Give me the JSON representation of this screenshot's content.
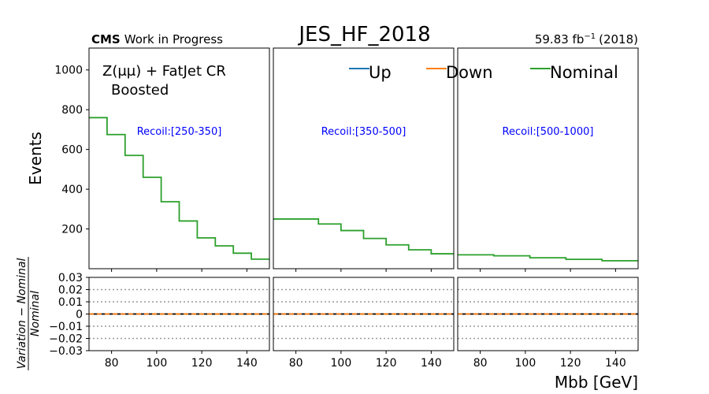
{
  "header": {
    "title": "JES_HF_2018",
    "title_color": "#ff0000",
    "cms_bold": "CMS",
    "cms_rest": "Work in Progress",
    "lumi_value": "59.83 fb",
    "lumi_exp": "−1",
    "lumi_year": "(2018)"
  },
  "region": {
    "line1": "Z(μμ) + FatJet CR",
    "line2": "Boosted"
  },
  "chart_data": {
    "type": "line",
    "step": true,
    "xlabel": "Mbb [GeV]",
    "ylabel_top": "Events",
    "ylabel_bottom": {
      "numerator": "Variation − Nominal",
      "denominator": "Nominal"
    },
    "top_ylim": [
      0,
      1110
    ],
    "top_yticks": [
      200,
      400,
      600,
      800,
      1000
    ],
    "ratio_ylim": [
      -0.03,
      0.03
    ],
    "ratio_yticks": [
      0.03,
      0.02,
      0.01,
      0,
      -0.01,
      -0.02,
      -0.03
    ],
    "ratio_yticklabels": [
      "0.03",
      "0.02",
      "0.01",
      "0",
      "−0.01",
      "−0.02",
      "−0.03"
    ],
    "ratio_gridlines": [
      0.02,
      0.01,
      -0.01,
      -0.02
    ],
    "legend": [
      {
        "name": "Up",
        "color": "#1f77b4"
      },
      {
        "name": "Down",
        "color": "#ff7f0e"
      },
      {
        "name": "Nominal",
        "color": "#2ca02c"
      }
    ],
    "legend_placement": "top",
    "panels": [
      {
        "label": "Recoil:[250-350]",
        "xlim": [
          70,
          150
        ],
        "xticks": [
          80,
          100,
          120,
          140
        ],
        "bin_edges": [
          70,
          78,
          86,
          94,
          102,
          110,
          118,
          126,
          134,
          142,
          150
        ],
        "nominal": [
          760,
          675,
          570,
          460,
          337,
          240,
          155,
          115,
          78,
          48
        ],
        "ratio_up": [
          0,
          0,
          0,
          0,
          0,
          0,
          0,
          0,
          0,
          0
        ],
        "ratio_down": [
          0,
          0,
          0,
          0,
          0,
          0,
          0,
          0,
          0,
          0
        ]
      },
      {
        "label": "Recoil:[350-500]",
        "xlim": [
          70,
          150
        ],
        "xticks": [
          80,
          100,
          120,
          140
        ],
        "bin_edges": [
          70,
          90,
          100,
          110,
          120,
          130,
          140,
          150
        ],
        "nominal": [
          250,
          225,
          192,
          152,
          120,
          95,
          75
        ],
        "ratio_up": [
          0,
          0,
          0,
          0,
          0,
          0,
          0
        ],
        "ratio_down": [
          0,
          0,
          0,
          0,
          0,
          0,
          0
        ]
      },
      {
        "label": "Recoil:[500-1000]",
        "xlim": [
          70,
          150
        ],
        "xticks": [
          80,
          100,
          120,
          140
        ],
        "bin_edges": [
          70,
          86,
          102,
          118,
          134,
          150
        ],
        "nominal": [
          70,
          65,
          55,
          47,
          40
        ],
        "ratio_up": [
          0,
          0,
          0,
          0,
          0
        ],
        "ratio_down": [
          0,
          0,
          0,
          0,
          0
        ]
      }
    ]
  }
}
